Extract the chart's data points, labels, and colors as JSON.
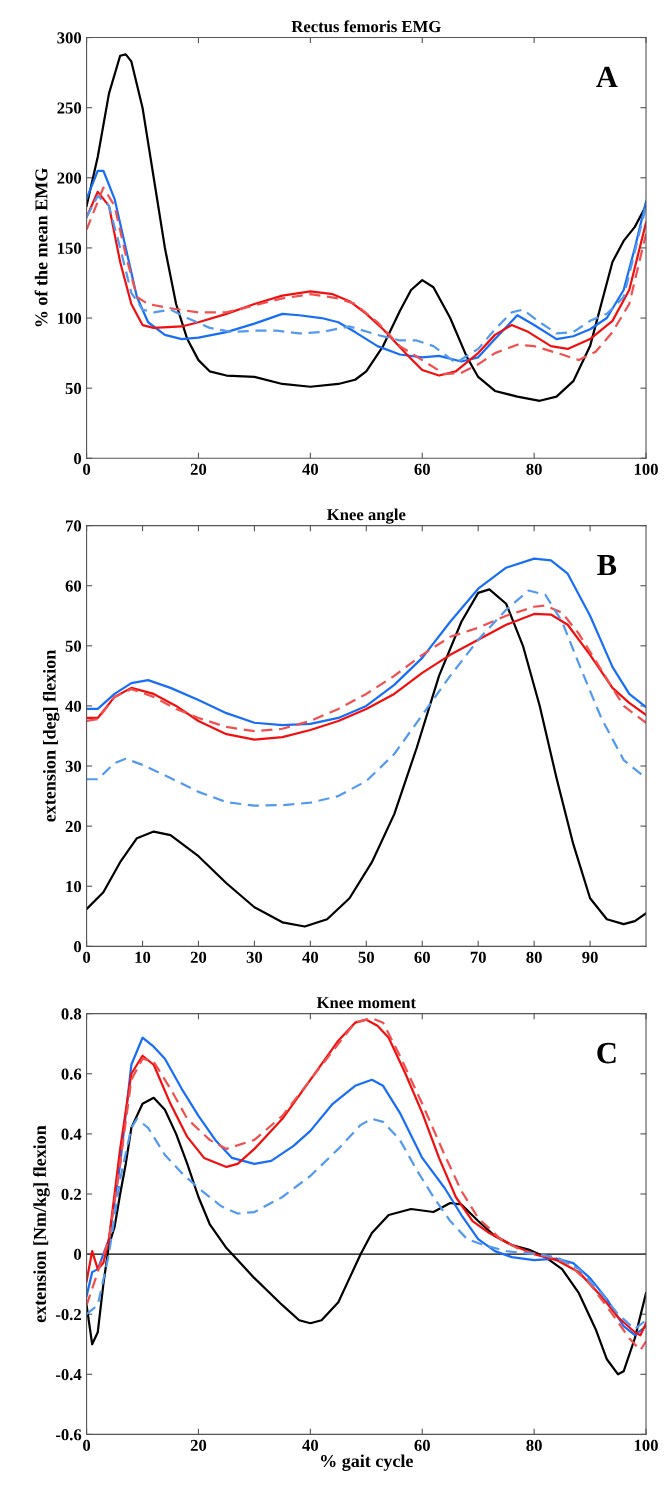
{
  "chart_data": [
    {
      "type": "line",
      "title": "Rectus femoris EMG",
      "ylabel": "% of the mean EMG",
      "annotations": [
        "A"
      ],
      "xlim": [
        0,
        100
      ],
      "xticks": [
        0,
        20,
        40,
        60,
        80,
        100
      ],
      "ylim": [
        0,
        300
      ],
      "yticks": [
        0,
        50,
        100,
        150,
        200,
        250,
        300
      ],
      "grid": false,
      "legend": false,
      "series": [
        {
          "color": "#000000",
          "line_style": "solid",
          "x": [
            0,
            2,
            4,
            6,
            7,
            8,
            10,
            12,
            14,
            16,
            18,
            20,
            22,
            25,
            30,
            35,
            40,
            45,
            48,
            50,
            53,
            56,
            58,
            60,
            62,
            65,
            68,
            70,
            73,
            77,
            81,
            84,
            87,
            90,
            92,
            94,
            96,
            98,
            100
          ],
          "values": [
            180,
            215,
            260,
            287,
            288,
            283,
            250,
            200,
            150,
            110,
            85,
            70,
            62,
            59,
            58,
            53,
            51,
            53,
            56,
            62,
            80,
            105,
            120,
            127,
            122,
            100,
            72,
            58,
            48,
            44,
            41,
            44,
            55,
            80,
            110,
            140,
            155,
            165,
            180
          ]
        },
        {
          "color": "#1a6ef5",
          "line_style": "solid",
          "x": [
            0,
            2,
            3,
            5,
            7,
            9,
            11,
            14,
            17,
            20,
            25,
            30,
            35,
            38,
            42,
            45,
            48,
            52,
            56,
            60,
            63,
            67,
            70,
            73,
            77,
            80,
            84,
            87,
            90,
            93,
            96,
            98,
            100
          ],
          "values": [
            185,
            205,
            205,
            185,
            150,
            115,
            97,
            88,
            85,
            86,
            90,
            96,
            103,
            102,
            100,
            97,
            90,
            80,
            74,
            72,
            73,
            69,
            72,
            85,
            102,
            95,
            85,
            87,
            92,
            100,
            120,
            150,
            183
          ]
        },
        {
          "color": "#f01010",
          "line_style": "solid",
          "x": [
            0,
            2,
            4,
            6,
            8,
            10,
            12,
            17,
            20,
            25,
            30,
            35,
            40,
            44,
            47,
            50,
            53,
            57,
            60,
            63,
            66,
            70,
            73,
            76,
            79,
            83,
            86,
            90,
            94,
            97,
            100
          ],
          "values": [
            172,
            190,
            180,
            140,
            110,
            95,
            93,
            94,
            97,
            103,
            110,
            116,
            119,
            117,
            112,
            103,
            92,
            75,
            63,
            59,
            62,
            75,
            88,
            95,
            90,
            80,
            78,
            85,
            98,
            120,
            168
          ]
        },
        {
          "color": "#f05050",
          "line_style": "dashed",
          "x": [
            0,
            3,
            5,
            7,
            9,
            11,
            15,
            20,
            25,
            30,
            35,
            40,
            45,
            48,
            52,
            56,
            60,
            64,
            67,
            70,
            73,
            77,
            80,
            85,
            88,
            91,
            94,
            97,
            100
          ],
          "values": [
            163,
            193,
            180,
            145,
            115,
            110,
            107,
            104,
            104,
            109,
            114,
            117,
            114,
            110,
            97,
            80,
            70,
            60,
            61,
            67,
            75,
            81,
            80,
            74,
            70,
            76,
            90,
            110,
            160
          ]
        },
        {
          "color": "#5599ee",
          "line_style": "dashed",
          "x": [
            0,
            2,
            4,
            6,
            8,
            10,
            12,
            15,
            18,
            22,
            26,
            30,
            34,
            38,
            42,
            47,
            52,
            56,
            59,
            62,
            66,
            70,
            73,
            76,
            78,
            81,
            84,
            87,
            90,
            93,
            96,
            100
          ],
          "values": [
            172,
            187,
            180,
            150,
            118,
            106,
            104,
            106,
            100,
            93,
            90,
            91,
            91,
            89,
            90,
            94,
            88,
            84,
            84,
            80,
            68,
            78,
            92,
            104,
            106,
            97,
            89,
            90,
            98,
            103,
            115,
            180
          ]
        }
      ]
    },
    {
      "type": "line",
      "title": "Knee angle",
      "ylabel": "extension [deg] flexion",
      "annotations": [
        "B"
      ],
      "xlim": [
        0,
        100
      ],
      "xticks": [
        0,
        10,
        20,
        30,
        40,
        50,
        60,
        70,
        80,
        90
      ],
      "ylim": [
        0,
        70
      ],
      "yticks": [
        0,
        10,
        20,
        30,
        40,
        50,
        60,
        70
      ],
      "grid": false,
      "legend": false,
      "series": [
        {
          "color": "#000000",
          "line_style": "solid",
          "x": [
            0,
            3,
            6,
            9,
            12,
            15,
            20,
            25,
            30,
            35,
            39,
            43,
            47,
            51,
            55,
            59,
            63,
            67,
            70,
            72,
            75,
            78,
            81,
            84,
            87,
            90,
            93,
            96,
            98,
            100
          ],
          "values": [
            6.2,
            9,
            14,
            18,
            19.1,
            18.5,
            15,
            10.5,
            6.5,
            4,
            3.3,
            4.5,
            8,
            14,
            22,
            33,
            45,
            54,
            58.8,
            59.4,
            57,
            50,
            40,
            28,
            17,
            8,
            4.5,
            3.7,
            4.2,
            5.5
          ]
        },
        {
          "color": "#1a6ef5",
          "line_style": "solid",
          "x": [
            0,
            2,
            5,
            8,
            11,
            15,
            20,
            25,
            30,
            35,
            40,
            45,
            50,
            55,
            60,
            65,
            70,
            75,
            80,
            83,
            86,
            90,
            94,
            97,
            100
          ],
          "values": [
            39.5,
            39.5,
            42,
            43.8,
            44.3,
            43,
            41,
            38.8,
            37.2,
            36.8,
            37,
            38,
            40,
            43.5,
            48,
            54,
            59.5,
            63,
            64.5,
            64.2,
            62,
            55,
            46.5,
            42,
            39.8
          ]
        },
        {
          "color": "#f01010",
          "line_style": "solid",
          "x": [
            0,
            2,
            5,
            8,
            12,
            16,
            20,
            25,
            30,
            35,
            40,
            45,
            50,
            55,
            60,
            65,
            70,
            75,
            80,
            83,
            86,
            90,
            94,
            97,
            100
          ],
          "values": [
            38,
            38,
            41.5,
            43,
            42,
            40,
            37.5,
            35.3,
            34.4,
            34.8,
            36,
            37.5,
            39.5,
            42,
            45.5,
            48.5,
            51,
            53.5,
            55.3,
            55.2,
            53.5,
            48.5,
            43,
            40.5,
            38.5
          ]
        },
        {
          "color": "#f05050",
          "line_style": "dashed",
          "x": [
            0,
            2,
            5,
            8,
            12,
            16,
            20,
            25,
            30,
            35,
            40,
            45,
            50,
            55,
            60,
            65,
            70,
            75,
            80,
            82,
            85,
            88,
            92,
            96,
            100
          ],
          "values": [
            37.5,
            37.8,
            41.5,
            42.8,
            41.5,
            39.5,
            38,
            36.5,
            35.8,
            36.2,
            37.5,
            39.5,
            42,
            45,
            48.5,
            51.5,
            53,
            55,
            56.5,
            56.7,
            55.5,
            52,
            46,
            40,
            37.2
          ]
        },
        {
          "color": "#5599ee",
          "line_style": "dashed",
          "x": [
            0,
            2,
            5,
            7,
            10,
            15,
            20,
            25,
            30,
            35,
            40,
            45,
            50,
            55,
            60,
            65,
            70,
            75,
            79,
            82,
            85,
            88,
            92,
            96,
            100
          ],
          "values": [
            27.8,
            27.8,
            30.5,
            31.2,
            30.2,
            28,
            25.7,
            24,
            23.4,
            23.5,
            23.9,
            25,
            27.5,
            32,
            38.5,
            45,
            51,
            56,
            59.2,
            58.5,
            54,
            47,
            38,
            31,
            28
          ]
        }
      ]
    },
    {
      "type": "line",
      "title": "Knee moment",
      "xlabel": "% gait cycle",
      "ylabel": "extension [Nm/kg] flexion",
      "annotations": [
        "C"
      ],
      "xlim": [
        0,
        100
      ],
      "xticks": [
        0,
        20,
        40,
        60,
        80,
        100
      ],
      "ylim": [
        -0.6,
        0.8
      ],
      "yticks": [
        -0.6,
        -0.4,
        -0.2,
        0,
        0.2,
        0.4,
        0.6,
        0.8
      ],
      "grid": false,
      "legend": false,
      "ref_lines": [
        {
          "axis": "y",
          "value": 0,
          "color": "#000000",
          "line_style": "solid"
        }
      ],
      "series": [
        {
          "color": "#000000",
          "line_style": "solid",
          "x": [
            0,
            1,
            2,
            3,
            4,
            5,
            6,
            7,
            8,
            10,
            12,
            14,
            16,
            18,
            20,
            22,
            25,
            27,
            30,
            35,
            38,
            40,
            42,
            45,
            47,
            49,
            51,
            54,
            58,
            62,
            65,
            67,
            70,
            73,
            76,
            79,
            82,
            85,
            88,
            91,
            93,
            95,
            96,
            98,
            100
          ],
          "values": [
            -0.17,
            -0.3,
            -0.26,
            -0.1,
            0.03,
            0.09,
            0.2,
            0.3,
            0.42,
            0.5,
            0.52,
            0.48,
            0.4,
            0.3,
            0.19,
            0.1,
            0.02,
            -0.02,
            -0.08,
            -0.17,
            -0.22,
            -0.23,
            -0.22,
            -0.16,
            -0.08,
            0.0,
            0.07,
            0.13,
            0.15,
            0.14,
            0.17,
            0.165,
            0.11,
            0.06,
            0.03,
            0.015,
            -0.01,
            -0.05,
            -0.13,
            -0.25,
            -0.35,
            -0.4,
            -0.39,
            -0.28,
            -0.13
          ]
        },
        {
          "color": "#1a6ef5",
          "line_style": "solid",
          "x": [
            0,
            1,
            2,
            4,
            6,
            8,
            10,
            12,
            14,
            17,
            20,
            23,
            26,
            30,
            33,
            37,
            40,
            44,
            48,
            51,
            53,
            56,
            60,
            64,
            67,
            70,
            73,
            76,
            80,
            84,
            87,
            90,
            93,
            96,
            98,
            100
          ],
          "values": [
            -0.14,
            -0.06,
            -0.05,
            0.05,
            0.3,
            0.63,
            0.72,
            0.69,
            0.65,
            0.55,
            0.46,
            0.38,
            0.32,
            0.3,
            0.31,
            0.36,
            0.41,
            0.5,
            0.56,
            0.58,
            0.56,
            0.47,
            0.32,
            0.22,
            0.13,
            0.05,
            0.01,
            -0.01,
            -0.02,
            -0.015,
            -0.03,
            -0.08,
            -0.15,
            -0.24,
            -0.27,
            -0.24
          ]
        },
        {
          "color": "#f01010",
          "line_style": "solid",
          "x": [
            0,
            1,
            2,
            3,
            4,
            6,
            8,
            10,
            12,
            15,
            18,
            21,
            25,
            27,
            30,
            35,
            40,
            45,
            48,
            50,
            52,
            54,
            57,
            60,
            63,
            66,
            69,
            72,
            76,
            80,
            84,
            88,
            92,
            95,
            98,
            99,
            100
          ],
          "values": [
            -0.09,
            0.01,
            -0.05,
            -0.03,
            0.05,
            0.35,
            0.6,
            0.66,
            0.63,
            0.5,
            0.39,
            0.32,
            0.29,
            0.3,
            0.35,
            0.45,
            0.58,
            0.71,
            0.77,
            0.78,
            0.76,
            0.72,
            0.6,
            0.47,
            0.32,
            0.19,
            0.11,
            0.07,
            0.03,
            0.0,
            -0.02,
            -0.06,
            -0.14,
            -0.21,
            -0.26,
            -0.27,
            -0.23
          ]
        },
        {
          "color": "#f05050",
          "line_style": "dashed",
          "x": [
            0,
            2,
            4,
            6,
            8,
            10,
            12,
            15,
            18,
            22,
            25,
            30,
            35,
            40,
            45,
            48,
            51,
            53,
            56,
            60,
            64,
            67,
            70,
            74,
            78,
            82,
            86,
            90,
            94,
            97,
            99,
            100
          ],
          "values": [
            -0.17,
            -0.06,
            0.05,
            0.3,
            0.58,
            0.65,
            0.64,
            0.55,
            0.45,
            0.38,
            0.35,
            0.38,
            0.46,
            0.58,
            0.7,
            0.77,
            0.785,
            0.77,
            0.66,
            0.5,
            0.33,
            0.21,
            0.12,
            0.05,
            0.01,
            -0.005,
            -0.03,
            -0.1,
            -0.2,
            -0.28,
            -0.32,
            -0.29
          ]
        },
        {
          "color": "#5599ee",
          "line_style": "dashed",
          "x": [
            0,
            2,
            4,
            6,
            8,
            9,
            11,
            14,
            17,
            20,
            24,
            27,
            30,
            35,
            40,
            45,
            49,
            51,
            53,
            56,
            59,
            62,
            65,
            68,
            71,
            75,
            80,
            84,
            88,
            92,
            95,
            98,
            100
          ],
          "values": [
            -0.2,
            -0.17,
            0.0,
            0.25,
            0.42,
            0.45,
            0.42,
            0.33,
            0.27,
            0.22,
            0.16,
            0.135,
            0.14,
            0.19,
            0.26,
            0.35,
            0.43,
            0.45,
            0.44,
            0.38,
            0.28,
            0.19,
            0.11,
            0.05,
            0.03,
            0.01,
            0.0,
            -0.01,
            -0.05,
            -0.13,
            -0.2,
            -0.25,
            -0.22
          ]
        }
      ]
    }
  ]
}
